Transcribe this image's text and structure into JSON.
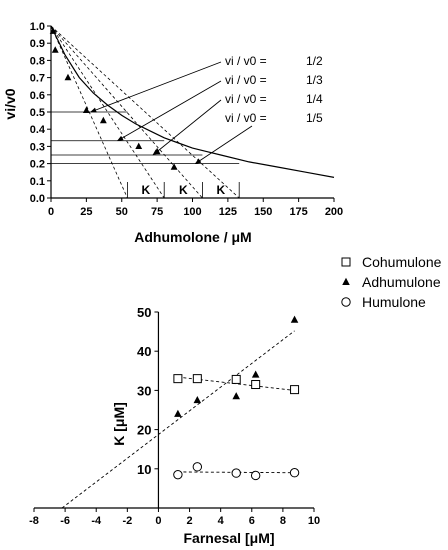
{
  "chart_data": [
    {
      "type": "line",
      "xlabel": "Adhumolone / μM",
      "ylabel": "vi/v0",
      "xlim": [
        0,
        200
      ],
      "ylim": [
        0,
        1.0
      ],
      "xticks": [
        "0",
        "25",
        "50",
        "75",
        "100",
        "125",
        "150",
        "175",
        "200"
      ],
      "yticks": [
        "0.0",
        "0.1",
        "0.2",
        "0.3",
        "0.4",
        "0.5",
        "0.6",
        "0.7",
        "0.8",
        "0.9",
        "1.0"
      ],
      "series": [
        {
          "marker": "triangle",
          "x": [
            1.5,
            3,
            12,
            25,
            37,
            62,
            75,
            87
          ],
          "y": [
            0.97,
            0.86,
            0.7,
            0.51,
            0.45,
            0.3,
            0.27,
            0.18
          ]
        }
      ],
      "fit_curve": {
        "x": [
          0,
          10,
          20,
          30,
          40,
          50,
          60,
          70,
          80,
          90,
          100,
          110,
          120,
          140,
          160,
          180,
          200
        ],
        "y": [
          1.0,
          0.83,
          0.7,
          0.61,
          0.54,
          0.48,
          0.43,
          0.39,
          0.35,
          0.32,
          0.29,
          0.27,
          0.25,
          0.21,
          0.18,
          0.15,
          0.12
        ]
      },
      "ratio_lines": [
        {
          "label_lhs": "vi / v0 =",
          "label_rhs": "1/2",
          "y": 0.5,
          "x_int": 54
        },
        {
          "label_lhs": "vi / v0 =",
          "label_rhs": "1/3",
          "y": 0.333,
          "x_int": 80
        },
        {
          "label_lhs": "vi / v0 =",
          "label_rhs": "1/4",
          "y": 0.25,
          "x_int": 107
        },
        {
          "label_lhs": "vi / v0 =",
          "label_rhs": "1/5",
          "y": 0.2,
          "x_int": 133
        }
      ],
      "k_labels": [
        "K",
        "K",
        "K"
      ]
    },
    {
      "type": "scatter",
      "xlabel": "Farnesal [μM]",
      "ylabel": "K [μM]",
      "xlim": [
        -8,
        10
      ],
      "ylim": [
        0,
        50
      ],
      "xticks": [
        "-8",
        "-6",
        "-4",
        "-2",
        "0",
        "2",
        "4",
        "6",
        "8",
        "10"
      ],
      "yticks": [
        "10",
        "20",
        "30",
        "40",
        "50"
      ],
      "series": [
        {
          "name": "Cohumulone",
          "marker": "square",
          "x": [
            1.25,
            2.5,
            5.0,
            6.25,
            8.75
          ],
          "y": [
            33.0,
            33.0,
            32.8,
            31.5,
            30.2
          ],
          "fit": {
            "x": [
              1.25,
              8.75
            ],
            "y": [
              33.4,
              30.0
            ]
          }
        },
        {
          "name": "Adhumulone",
          "marker": "triangle",
          "x": [
            1.25,
            2.5,
            5.0,
            6.25,
            8.75
          ],
          "y": [
            24.0,
            27.5,
            28.5,
            34.0,
            48.0
          ],
          "fit": {
            "x": [
              -6.2,
              8.75
            ],
            "y": [
              0,
              45.2
            ]
          }
        },
        {
          "name": "Humulone",
          "marker": "circle",
          "x": [
            1.25,
            2.5,
            5.0,
            6.25,
            8.75
          ],
          "y": [
            8.5,
            10.5,
            8.9,
            8.3,
            9.0
          ],
          "fit": {
            "x": [
              1.25,
              8.75
            ],
            "y": [
              9.2,
              9.0
            ]
          }
        }
      ]
    }
  ]
}
